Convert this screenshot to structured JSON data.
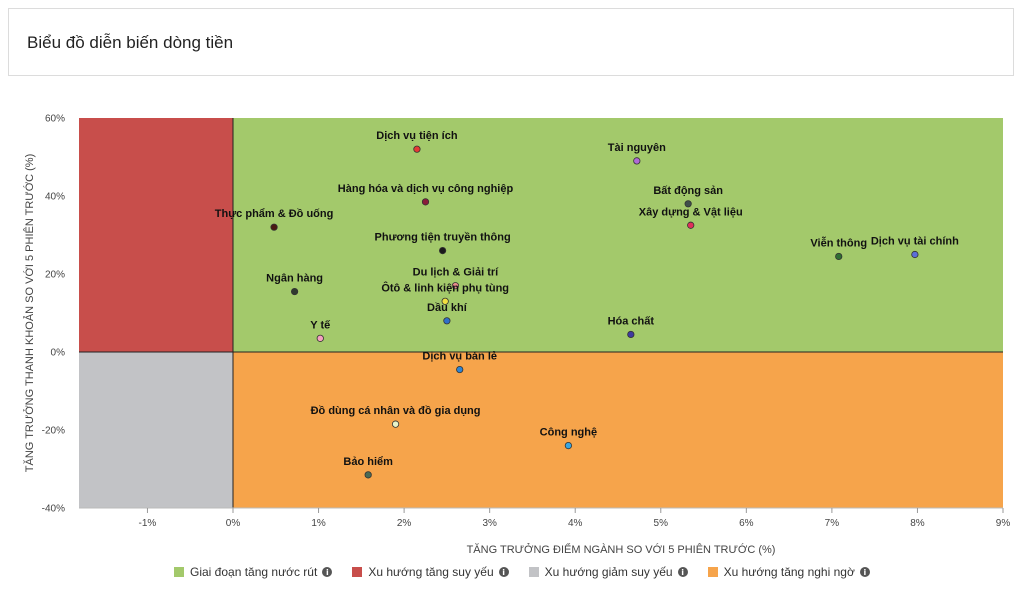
{
  "header": {
    "title": "Biểu đồ diễn biến dòng tiền"
  },
  "chart_data": {
    "type": "scatter",
    "xlabel": "TĂNG TRƯỞNG ĐIỂM NGÀNH SO VỚI 5 PHIÊN TRƯỚC (%)",
    "ylabel": "TĂNG TRƯỞNG THANH KHOẢN SO VỚI 5 PHIÊN TRƯỚC (%)",
    "xlim": [
      -1.8,
      9
    ],
    "ylim": [
      -40,
      60
    ],
    "x_ticks": [
      -1,
      0,
      1,
      2,
      3,
      4,
      5,
      6,
      7,
      8,
      9
    ],
    "x_tick_labels": [
      "-1%",
      "0%",
      "1%",
      "2%",
      "3%",
      "4%",
      "5%",
      "6%",
      "7%",
      "8%",
      "9%"
    ],
    "y_ticks": [
      -40,
      -20,
      0,
      20,
      40,
      60
    ],
    "y_tick_labels": [
      "-40%",
      "-20%",
      "0%",
      "20%",
      "40%",
      "60%"
    ],
    "quadrants": [
      {
        "name": "Giai đoạn tăng nước rút",
        "color": "#a3c96b"
      },
      {
        "name": "Xu hướng tăng suy yếu",
        "color": "#c84e4b"
      },
      {
        "name": "Xu hướng giảm suy yếu",
        "color": "#c2c3c6"
      },
      {
        "name": "Xu hướng tăng nghi ngờ",
        "color": "#f6a44b"
      }
    ],
    "points": [
      {
        "label": "Dịch vụ tiện ích",
        "x": 2.15,
        "y": 52,
        "color": "#e53935"
      },
      {
        "label": "Tài nguyên",
        "x": 4.72,
        "y": 49,
        "color": "#b06ad6"
      },
      {
        "label": "Hàng hóa và dịch vụ công nghiệp",
        "x": 2.25,
        "y": 38.5,
        "color": "#8a1c3a"
      },
      {
        "label": "Bất động sản",
        "x": 5.32,
        "y": 38,
        "color": "#3f4f4a"
      },
      {
        "label": "Thực phẩm & Đồ uống",
        "x": 0.48,
        "y": 32,
        "color": "#4a1a12"
      },
      {
        "label": "Xây dựng & Vật liệu",
        "x": 5.35,
        "y": 32.5,
        "color": "#e0305a"
      },
      {
        "label": "Phương tiện truyền thông",
        "x": 2.45,
        "y": 26,
        "color": "#1a1a1a"
      },
      {
        "label": "Viễn thông",
        "x": 7.08,
        "y": 24.5,
        "color": "#2f6e33"
      },
      {
        "label": "Dịch vụ tài chính",
        "x": 7.97,
        "y": 25,
        "color": "#5c6fd8"
      },
      {
        "label": "Du lịch & Giải trí",
        "x": 2.6,
        "y": 17,
        "color": "#e88b8b"
      },
      {
        "label": "Ôtô & linh kiện phụ tùng",
        "x": 2.48,
        "y": 13,
        "color": "#f1e040"
      },
      {
        "label": "Ngân hàng",
        "x": 0.72,
        "y": 15.5,
        "color": "#2f3a2f"
      },
      {
        "label": "Dầu khí",
        "x": 2.5,
        "y": 8,
        "color": "#2f6fc9"
      },
      {
        "label": "Hóa chất",
        "x": 4.65,
        "y": 4.5,
        "color": "#3f3aa0"
      },
      {
        "label": "Y tế",
        "x": 1.02,
        "y": 3.5,
        "color": "#f5a0c0"
      },
      {
        "label": "Dịch vụ bán lẻ",
        "x": 2.65,
        "y": -4.5,
        "color": "#2f84d2"
      },
      {
        "label": "Đồ dùng cá nhân và đồ gia dụng",
        "x": 1.9,
        "y": -18.5,
        "color": "#e8f3c8"
      },
      {
        "label": "Công nghệ",
        "x": 3.92,
        "y": -24,
        "color": "#3aa6e0"
      },
      {
        "label": "Bảo hiểm",
        "x": 1.58,
        "y": -31.5,
        "color": "#4a6a55"
      }
    ]
  }
}
